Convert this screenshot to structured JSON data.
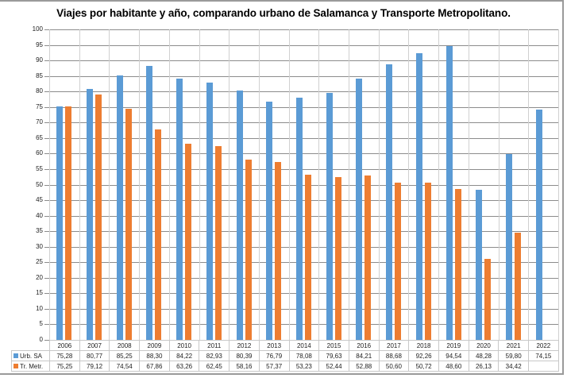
{
  "chart_data": {
    "type": "bar",
    "title": "Viajes por habitante y año, comparando urbano de Salamanca y Transporte Metropolitano.",
    "xlabel": "",
    "ylabel": "",
    "ylim": [
      0,
      100
    ],
    "yticks": [
      0,
      5,
      10,
      15,
      20,
      25,
      30,
      35,
      40,
      45,
      50,
      55,
      60,
      65,
      70,
      75,
      80,
      85,
      90,
      95,
      100
    ],
    "grid": true,
    "legend_position": "data-table",
    "categories": [
      "2006",
      "2007",
      "2008",
      "2009",
      "2010",
      "2011",
      "2012",
      "2013",
      "2014",
      "2015",
      "2016",
      "2017",
      "2018",
      "2019",
      "2020",
      "2021",
      "2022"
    ],
    "series": [
      {
        "name": "Urb. SA",
        "color": "#5b9bd5",
        "values": [
          75.28,
          80.77,
          85.25,
          88.3,
          84.22,
          82.93,
          80.39,
          76.79,
          78.08,
          79.63,
          84.21,
          88.68,
          92.26,
          94.54,
          48.28,
          59.8,
          74.15
        ],
        "labels": [
          "75,28",
          "80,77",
          "85,25",
          "88,30",
          "84,22",
          "82,93",
          "80,39",
          "76,79",
          "78,08",
          "79,63",
          "84,21",
          "88,68",
          "92,26",
          "94,54",
          "48,28",
          "59,80",
          "74,15"
        ]
      },
      {
        "name": "Tr. Metr.",
        "color": "#ed7d31",
        "values": [
          75.25,
          79.12,
          74.54,
          67.86,
          63.26,
          62.45,
          58.16,
          57.37,
          53.23,
          52.44,
          52.88,
          50.6,
          50.72,
          48.6,
          26.13,
          34.42,
          null
        ],
        "labels": [
          "75,25",
          "79,12",
          "74,54",
          "67,86",
          "63,26",
          "62,45",
          "58,16",
          "57,37",
          "53,23",
          "52,44",
          "52,88",
          "50,60",
          "50,72",
          "48,60",
          "26,13",
          "34,42",
          ""
        ]
      }
    ]
  }
}
